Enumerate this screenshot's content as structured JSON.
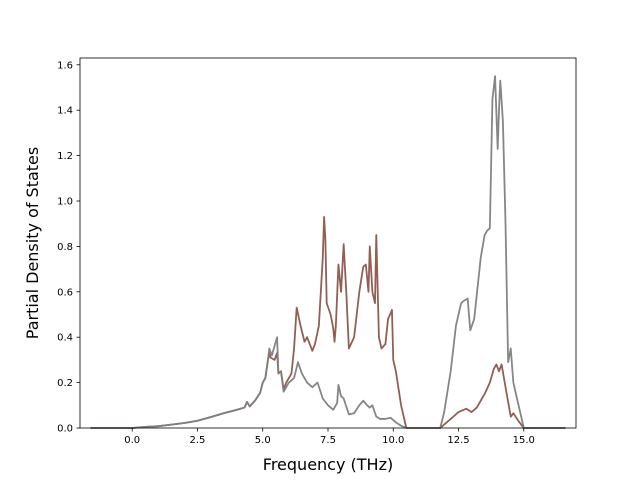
{
  "chart_data": {
    "type": "line",
    "title": "",
    "xlabel": "Frequency (THz)",
    "ylabel": "Partial Density of States",
    "xlim": [
      -2.0,
      17.0
    ],
    "ylim": [
      0.0,
      1.63
    ],
    "xticks": [
      0.0,
      2.5,
      5.0,
      7.5,
      10.0,
      12.5,
      15.0
    ],
    "xtick_labels": [
      "0.0",
      "2.5",
      "5.0",
      "7.5",
      "10.0",
      "12.5",
      "15.0"
    ],
    "yticks": [
      0.0,
      0.2,
      0.4,
      0.6,
      0.8,
      1.0,
      1.2,
      1.4,
      1.6
    ],
    "ytick_labels": [
      "0.0",
      "0.2",
      "0.4",
      "0.6",
      "0.8",
      "1.0",
      "1.2",
      "1.4",
      "1.6"
    ],
    "grid": false,
    "legend": "none",
    "series": [
      {
        "color": "#8c564b",
        "points": [
          [
            -1.6,
            0.0
          ],
          [
            0.0,
            0.0
          ],
          [
            0.5,
            0.005
          ],
          [
            1.0,
            0.008
          ],
          [
            1.5,
            0.015
          ],
          [
            2.0,
            0.022
          ],
          [
            2.5,
            0.032
          ],
          [
            3.0,
            0.048
          ],
          [
            3.5,
            0.065
          ],
          [
            4.0,
            0.08
          ],
          [
            4.3,
            0.09
          ],
          [
            4.4,
            0.115
          ],
          [
            4.5,
            0.095
          ],
          [
            4.7,
            0.12
          ],
          [
            4.9,
            0.155
          ],
          [
            5.0,
            0.2
          ],
          [
            5.1,
            0.22
          ],
          [
            5.2,
            0.3
          ],
          [
            5.25,
            0.33
          ],
          [
            5.3,
            0.31
          ],
          [
            5.45,
            0.3
          ],
          [
            5.55,
            0.33
          ],
          [
            5.6,
            0.24
          ],
          [
            5.7,
            0.25
          ],
          [
            5.8,
            0.17
          ],
          [
            5.9,
            0.2
          ],
          [
            6.1,
            0.24
          ],
          [
            6.2,
            0.35
          ],
          [
            6.3,
            0.53
          ],
          [
            6.45,
            0.45
          ],
          [
            6.6,
            0.38
          ],
          [
            6.7,
            0.4
          ],
          [
            6.9,
            0.34
          ],
          [
            7.0,
            0.37
          ],
          [
            7.15,
            0.45
          ],
          [
            7.3,
            0.75
          ],
          [
            7.35,
            0.93
          ],
          [
            7.4,
            0.83
          ],
          [
            7.45,
            0.55
          ],
          [
            7.6,
            0.5
          ],
          [
            7.7,
            0.44
          ],
          [
            7.75,
            0.38
          ],
          [
            7.8,
            0.45
          ],
          [
            7.9,
            0.72
          ],
          [
            8.0,
            0.6
          ],
          [
            8.1,
            0.81
          ],
          [
            8.2,
            0.6
          ],
          [
            8.3,
            0.35
          ],
          [
            8.5,
            0.4
          ],
          [
            8.7,
            0.6
          ],
          [
            8.85,
            0.71
          ],
          [
            8.95,
            0.72
          ],
          [
            9.05,
            0.6
          ],
          [
            9.1,
            0.8
          ],
          [
            9.2,
            0.6
          ],
          [
            9.3,
            0.55
          ],
          [
            9.35,
            0.85
          ],
          [
            9.45,
            0.4
          ],
          [
            9.55,
            0.35
          ],
          [
            9.7,
            0.37
          ],
          [
            9.8,
            0.48
          ],
          [
            9.95,
            0.52
          ],
          [
            10.0,
            0.3
          ],
          [
            10.1,
            0.25
          ],
          [
            10.3,
            0.1
          ],
          [
            10.5,
            0.0
          ],
          [
            11.8,
            0.0
          ],
          [
            12.0,
            0.02
          ],
          [
            12.3,
            0.05
          ],
          [
            12.5,
            0.07
          ],
          [
            12.8,
            0.085
          ],
          [
            13.0,
            0.07
          ],
          [
            13.2,
            0.09
          ],
          [
            13.5,
            0.15
          ],
          [
            13.7,
            0.2
          ],
          [
            13.85,
            0.26
          ],
          [
            13.95,
            0.28
          ],
          [
            14.05,
            0.25
          ],
          [
            14.15,
            0.28
          ],
          [
            14.3,
            0.18
          ],
          [
            14.5,
            0.05
          ],
          [
            14.6,
            0.065
          ],
          [
            14.8,
            0.03
          ],
          [
            15.0,
            0.0
          ],
          [
            16.6,
            0.0
          ]
        ]
      },
      {
        "color": "#7f7f7f",
        "points": [
          [
            -1.6,
            0.0
          ],
          [
            0.0,
            0.0
          ],
          [
            0.5,
            0.005
          ],
          [
            1.0,
            0.008
          ],
          [
            1.5,
            0.015
          ],
          [
            2.0,
            0.022
          ],
          [
            2.5,
            0.032
          ],
          [
            3.0,
            0.048
          ],
          [
            3.5,
            0.065
          ],
          [
            4.0,
            0.08
          ],
          [
            4.3,
            0.09
          ],
          [
            4.4,
            0.115
          ],
          [
            4.5,
            0.095
          ],
          [
            4.7,
            0.12
          ],
          [
            4.9,
            0.155
          ],
          [
            5.0,
            0.2
          ],
          [
            5.1,
            0.22
          ],
          [
            5.2,
            0.3
          ],
          [
            5.25,
            0.35
          ],
          [
            5.35,
            0.32
          ],
          [
            5.5,
            0.38
          ],
          [
            5.55,
            0.4
          ],
          [
            5.6,
            0.24
          ],
          [
            5.7,
            0.25
          ],
          [
            5.8,
            0.16
          ],
          [
            6.0,
            0.2
          ],
          [
            6.2,
            0.22
          ],
          [
            6.35,
            0.29
          ],
          [
            6.5,
            0.24
          ],
          [
            6.7,
            0.2
          ],
          [
            6.9,
            0.18
          ],
          [
            7.1,
            0.2
          ],
          [
            7.3,
            0.13
          ],
          [
            7.5,
            0.1
          ],
          [
            7.7,
            0.08
          ],
          [
            7.85,
            0.11
          ],
          [
            7.9,
            0.19
          ],
          [
            8.0,
            0.14
          ],
          [
            8.1,
            0.13
          ],
          [
            8.3,
            0.06
          ],
          [
            8.5,
            0.065
          ],
          [
            8.7,
            0.1
          ],
          [
            8.85,
            0.12
          ],
          [
            9.0,
            0.1
          ],
          [
            9.1,
            0.09
          ],
          [
            9.2,
            0.1
          ],
          [
            9.35,
            0.05
          ],
          [
            9.5,
            0.04
          ],
          [
            9.7,
            0.04
          ],
          [
            9.9,
            0.045
          ],
          [
            10.1,
            0.025
          ],
          [
            10.3,
            0.01
          ],
          [
            10.5,
            0.0
          ],
          [
            11.8,
            0.0
          ],
          [
            11.95,
            0.07
          ],
          [
            12.2,
            0.25
          ],
          [
            12.4,
            0.45
          ],
          [
            12.6,
            0.55
          ],
          [
            12.7,
            0.56
          ],
          [
            12.85,
            0.57
          ],
          [
            12.95,
            0.43
          ],
          [
            13.1,
            0.48
          ],
          [
            13.35,
            0.75
          ],
          [
            13.5,
            0.85
          ],
          [
            13.6,
            0.87
          ],
          [
            13.7,
            0.88
          ],
          [
            13.8,
            1.45
          ],
          [
            13.9,
            1.55
          ],
          [
            14.0,
            1.23
          ],
          [
            14.05,
            1.4
          ],
          [
            14.1,
            1.53
          ],
          [
            14.2,
            1.35
          ],
          [
            14.3,
            0.9
          ],
          [
            14.4,
            0.29
          ],
          [
            14.5,
            0.35
          ],
          [
            14.6,
            0.2
          ],
          [
            14.8,
            0.1
          ],
          [
            15.0,
            0.0
          ],
          [
            16.6,
            0.0
          ]
        ]
      }
    ]
  }
}
